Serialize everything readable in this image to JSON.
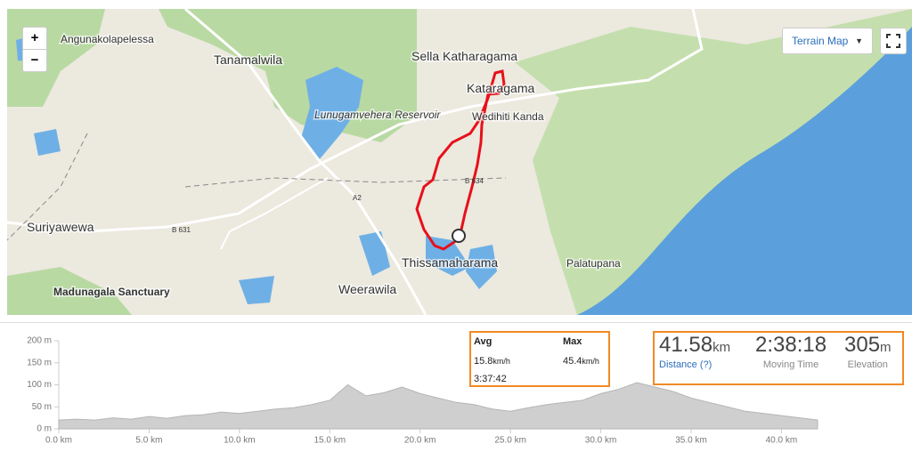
{
  "map": {
    "labels": [
      "Angunakolapelessa",
      "Tanamalwila",
      "Sella Katharagama",
      "Kataragama",
      "Wedihiti Kanda",
      "Lunugamvehera Reservoir",
      "B 634",
      "A2",
      "B 631",
      "Suriyawewa",
      "Thissamaharama",
      "Palatupana",
      "Weerawila",
      "Madunagala Sanctuary"
    ],
    "zoom_in": "+",
    "zoom_out": "−",
    "map_type": "Terrain Map"
  },
  "elevation": {
    "type": "area",
    "color": "#cfcfcf",
    "x": [
      0,
      1,
      2,
      3,
      4,
      5,
      6,
      7,
      8,
      9,
      10,
      11,
      12,
      13,
      14,
      15,
      16,
      17,
      18,
      19,
      20,
      21,
      22,
      23,
      24,
      25,
      26,
      27,
      28,
      29,
      30,
      31,
      32,
      33,
      34,
      35,
      36,
      37,
      38,
      39,
      40,
      41,
      42
    ],
    "values": [
      20,
      22,
      20,
      25,
      22,
      28,
      24,
      30,
      32,
      38,
      35,
      40,
      45,
      48,
      55,
      65,
      100,
      75,
      82,
      95,
      80,
      70,
      60,
      55,
      45,
      40,
      48,
      55,
      60,
      65,
      80,
      90,
      105,
      95,
      85,
      70,
      60,
      50,
      40,
      35,
      30,
      25,
      20
    ],
    "xlim": [
      0,
      42
    ],
    "ylim": [
      0,
      200
    ],
    "xticks": [
      {
        "value": 0,
        "label": "0.0 km"
      },
      {
        "value": 5,
        "label": "5.0 km"
      },
      {
        "value": 10,
        "label": "10.0 km"
      },
      {
        "value": 15,
        "label": "15.0 km"
      },
      {
        "value": 20,
        "label": "20.0 km"
      },
      {
        "value": 25,
        "label": "25.0 km"
      },
      {
        "value": 30,
        "label": "30.0 km"
      },
      {
        "value": 35,
        "label": "35.0 km"
      },
      {
        "value": 40,
        "label": "40.0 km"
      }
    ],
    "yticks": [
      {
        "value": 0,
        "label": "0 m"
      },
      {
        "value": 50,
        "label": "50 m"
      },
      {
        "value": 100,
        "label": "100 m"
      },
      {
        "value": 150,
        "label": "150 m"
      },
      {
        "value": 200,
        "label": "200 m"
      }
    ]
  },
  "stats": {
    "avg_header": "Avg",
    "max_header": "Max",
    "avg_speed": {
      "value": "15.8",
      "unit": "km/h"
    },
    "max_speed": {
      "value": "45.4",
      "unit": "km/h"
    },
    "elapsed_time": "3:37:42",
    "distance": {
      "value": "41.58",
      "unit": "km",
      "label": "Distance (?)"
    },
    "moving_time": {
      "value": "2:38:18",
      "label": "Moving Time"
    },
    "elevation": {
      "value": "305",
      "unit": "m",
      "label": "Elevation"
    }
  }
}
